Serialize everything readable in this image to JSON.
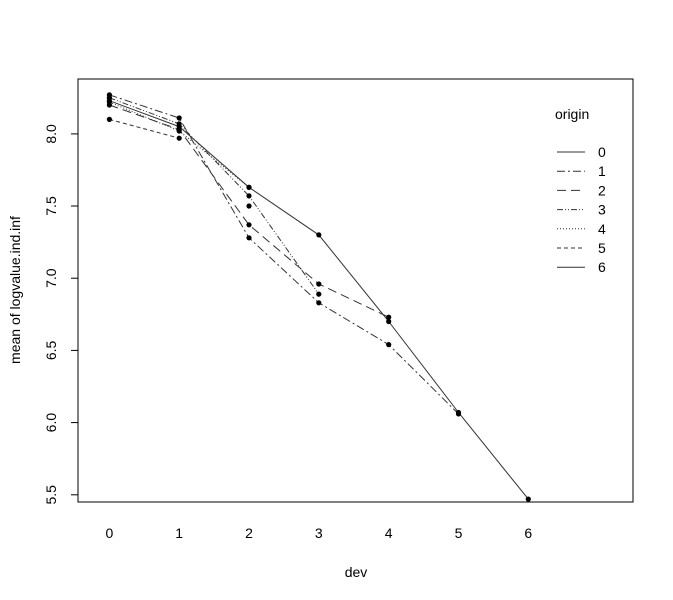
{
  "chart_data": {
    "type": "line",
    "xlabel": "dev",
    "ylabel": "mean of  logvalue.ind.inf",
    "xlim": [
      -0.45,
      7.5
    ],
    "ylim": [
      5.45,
      8.38
    ],
    "x_ticks": [
      0,
      1,
      2,
      3,
      4,
      5,
      6
    ],
    "y_ticks": [
      5.5,
      6.0,
      6.5,
      7.0,
      7.5,
      8.0
    ],
    "y_tick_labels": [
      "5.5",
      "6.0",
      "6.5",
      "7.0",
      "7.5",
      "8.0"
    ],
    "grid": false,
    "legend": {
      "title": "origin",
      "placement": "top-right"
    },
    "series": [
      {
        "name": "0",
        "dash": "",
        "x": [
          0,
          1,
          2,
          3,
          4,
          5,
          6
        ],
        "y": [
          8.23,
          8.05,
          7.63,
          7.3,
          6.7,
          6.07,
          5.47
        ]
      },
      {
        "name": "1",
        "dash": "8,3,2,3",
        "x": [
          0,
          1,
          2,
          3,
          4,
          5
        ],
        "y": [
          8.27,
          8.11,
          7.28,
          6.83,
          6.54,
          6.06
        ]
      },
      {
        "name": "2",
        "dash": "9,5",
        "x": [
          0,
          1,
          2,
          3,
          4
        ],
        "y": [
          8.2,
          8.03,
          7.37,
          6.96,
          6.73
        ]
      },
      {
        "name": "3",
        "dash": "6,2,1,2,1,2",
        "x": [
          0,
          1,
          2,
          3
        ],
        "y": [
          8.25,
          8.07,
          7.57,
          6.89
        ]
      },
      {
        "name": "4",
        "dash": "1,2",
        "x": [
          0,
          1,
          2
        ],
        "y": [
          8.22,
          8.02,
          7.63
        ]
      },
      {
        "name": "5",
        "dash": "4,3",
        "x": [
          0,
          1
        ],
        "y": [
          8.1,
          7.97
        ]
      },
      {
        "name": "6",
        "dash": "",
        "x": [
          0
        ],
        "y": [
          8.25
        ]
      }
    ],
    "extra_points": [
      {
        "x": 2,
        "y": 7.5
      }
    ]
  }
}
